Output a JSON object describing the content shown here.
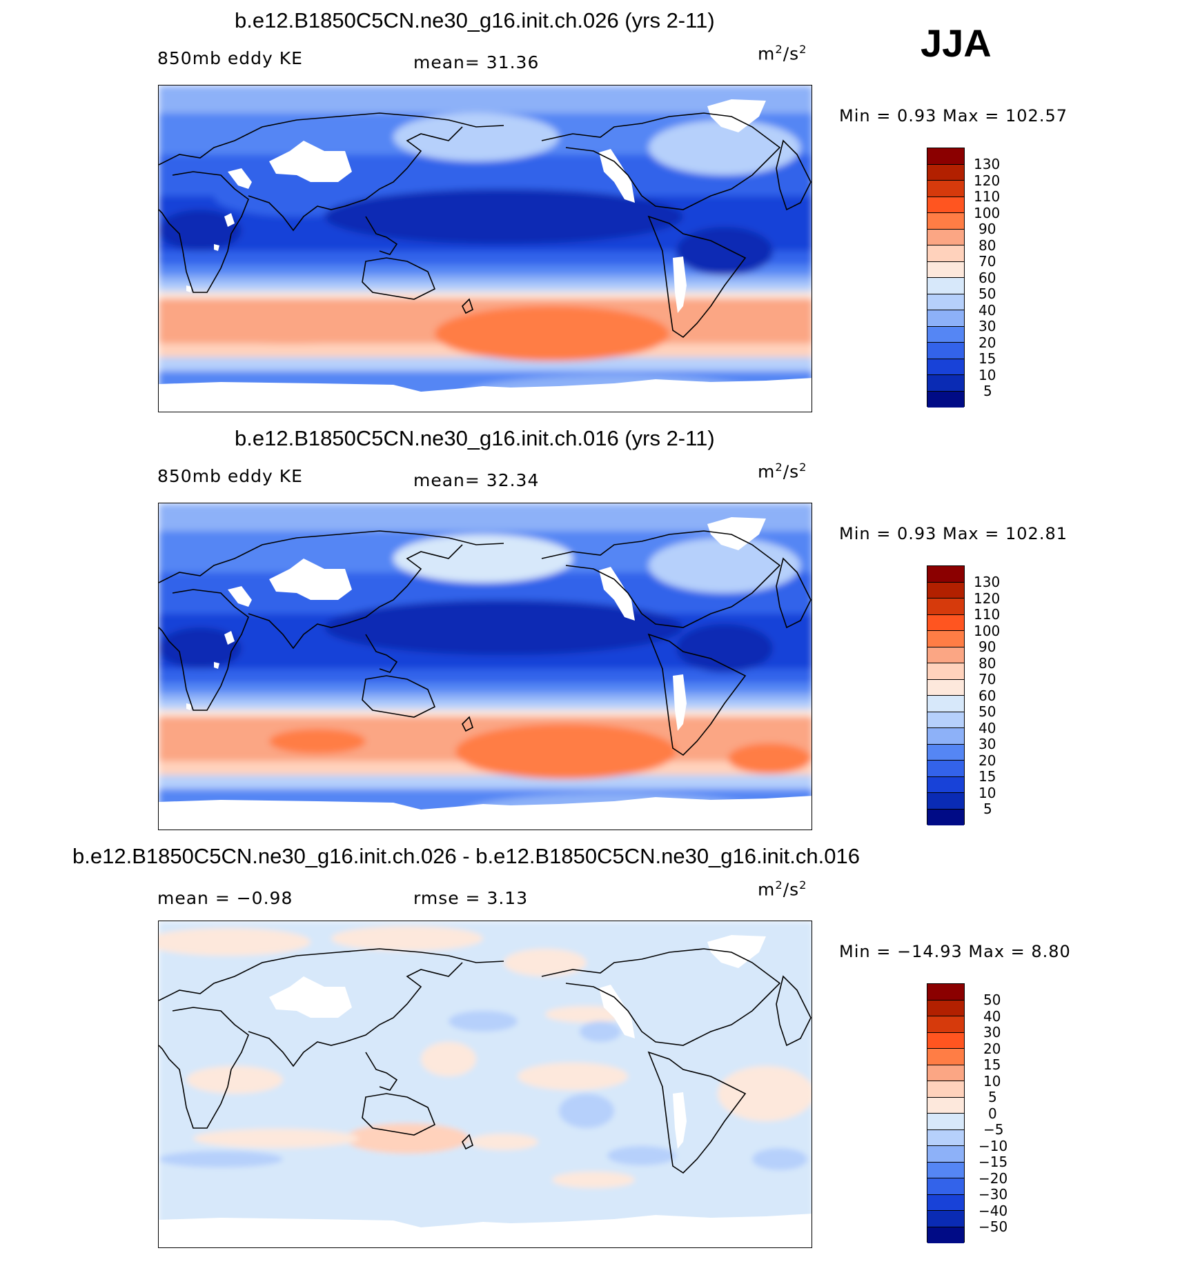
{
  "season": "JJA",
  "panels": [
    {
      "title": "b.e12.B1850C5CN.ne30_g16.init.ch.026 (yrs 2-11)",
      "left_label": "850mb eddy KE",
      "mid_label": "mean=   31.36",
      "units_base": "m",
      "units_exp1": "2",
      "units_slash": "/s",
      "units_exp2": "2",
      "minmax": "Min =    0.93 Max = 102.57"
    },
    {
      "title": "b.e12.B1850C5CN.ne30_g16.init.ch.016 (yrs 2-11)",
      "left_label": "850mb eddy KE",
      "mid_label": "mean=   32.34",
      "units_base": "m",
      "units_exp1": "2",
      "units_slash": "/s",
      "units_exp2": "2",
      "minmax": "Min =    0.93 Max = 102.81"
    },
    {
      "title": "b.e12.B1850C5CN.ne30_g16.init.ch.026 - b.e12.B1850C5CN.ne30_g16.init.ch.016",
      "left_label": "mean =   −0.98",
      "mid_label": "rmse =    3.13",
      "units_base": "m",
      "units_exp1": "2",
      "units_slash": "/s",
      "units_exp2": "2",
      "minmax": "Min = −14.93 Max =    8.80"
    }
  ],
  "colorbars": {
    "field": {
      "labels": [
        "130",
        "120",
        "110",
        "100",
        "90",
        "80",
        "70",
        "60",
        "50",
        "40",
        "30",
        "20",
        "15",
        "10",
        "5"
      ],
      "colors": [
        "#8b0000",
        "#b22000",
        "#d63a0c",
        "#ff5520",
        "#ff7d45",
        "#fba684",
        "#ffd2bc",
        "#fde8dc",
        "#d7e8fa",
        "#b6d0fb",
        "#8db1f8",
        "#5586f4",
        "#3363ea",
        "#1842d8",
        "#0a2bb4",
        "#000b86"
      ]
    },
    "diff": {
      "labels": [
        "50",
        "40",
        "30",
        "20",
        "15",
        "10",
        "5",
        "0",
        "−5",
        "−10",
        "−15",
        "−20",
        "−30",
        "−40",
        "−50"
      ],
      "colors": [
        "#8b0000",
        "#b22000",
        "#d63a0c",
        "#ff5520",
        "#ff7d45",
        "#fba684",
        "#ffd2bc",
        "#fde8dc",
        "#d7e8fa",
        "#b6d0fb",
        "#8db1f8",
        "#5586f4",
        "#3363ea",
        "#1842d8",
        "#0a2bb4",
        "#000b86"
      ]
    }
  }
}
